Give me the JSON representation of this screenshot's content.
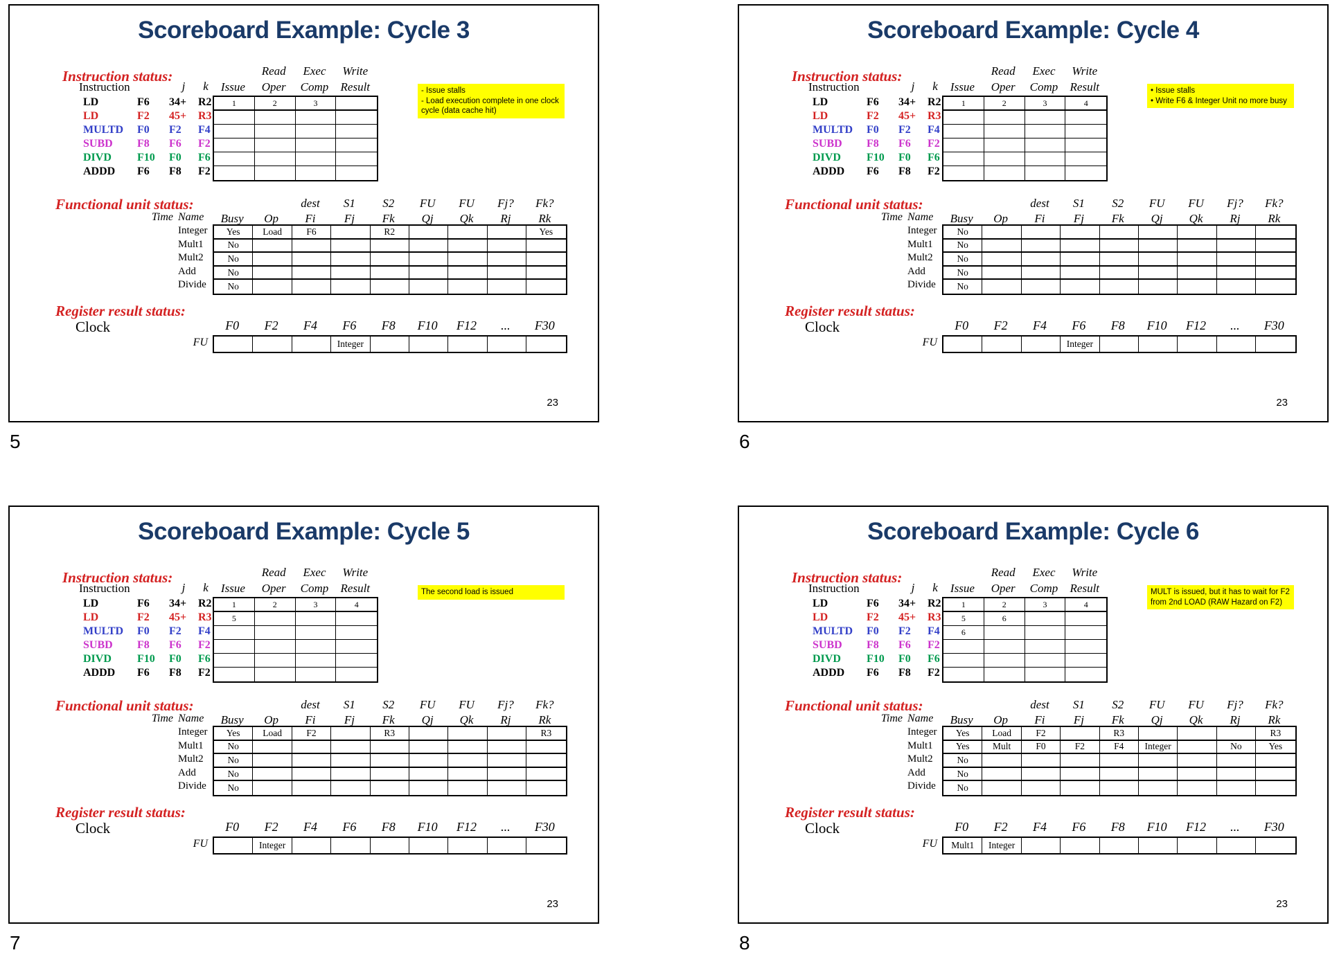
{
  "common": {
    "section_labels": {
      "instruction": "Instruction status:",
      "functional": "Functional unit status:",
      "register": "Register result status:"
    },
    "instruction_table": {
      "row_header": "Instruction",
      "j_header": "j",
      "k_header": "k",
      "col_headers_top": [
        "",
        "Read",
        "Exec",
        "Write"
      ],
      "col_headers_bottom": [
        "Issue",
        "Oper",
        "Comp",
        "Result"
      ],
      "instructions": [
        {
          "op": "LD",
          "operands": [
            "F6",
            "34+",
            "R2"
          ],
          "color": "#000000"
        },
        {
          "op": "LD",
          "operands": [
            "F2",
            "45+",
            "R3"
          ],
          "color": "#d42222"
        },
        {
          "op": "MULTD",
          "operands": [
            "F0",
            "F2",
            "F4"
          ],
          "color": "#3340c8"
        },
        {
          "op": "SUBD",
          "operands": [
            "F8",
            "F6",
            "F2"
          ],
          "color": "#cc33cc"
        },
        {
          "op": "DIVD",
          "operands": [
            "F10",
            "F0",
            "F6"
          ],
          "color": "#009a4e"
        },
        {
          "op": "ADDD",
          "operands": [
            "F6",
            "F8",
            "F2"
          ],
          "color": "#000000"
        }
      ]
    },
    "fu_table": {
      "time_header": "Time",
      "name_header": "Name",
      "col_headers_top": [
        "",
        "",
        "dest",
        "S1",
        "S2",
        "FU",
        "FU",
        "Fj?",
        "Fk?"
      ],
      "col_headers_bottom": [
        "Busy",
        "Op",
        "Fi",
        "Fj",
        "Fk",
        "Qj",
        "Qk",
        "Rj",
        "Rk"
      ],
      "units": [
        "Integer",
        "Mult1",
        "Mult2",
        "Add",
        "Divide"
      ]
    },
    "register_table": {
      "clock_label": "Clock",
      "fu_label": "FU",
      "headers": [
        "F0",
        "F2",
        "F4",
        "F6",
        "F8",
        "F10",
        "F12",
        "...",
        "F30"
      ]
    },
    "colors": {
      "title": "#1a3a68",
      "section_label": "#d42222",
      "note_bg": "#ffff00"
    }
  },
  "slides": [
    {
      "slide_number": "5",
      "title": "Scoreboard Example: Cycle 3",
      "page_number": "23",
      "note_lines": [
        "- Issue stalls",
        "- Load execution complete in one clock cycle (data cache hit)"
      ],
      "instruction_cells": [
        [
          "1",
          "2",
          "3",
          ""
        ],
        [
          "",
          "",
          "",
          ""
        ],
        [
          "",
          "",
          "",
          ""
        ],
        [
          "",
          "",
          "",
          ""
        ],
        [
          "",
          "",
          "",
          ""
        ],
        [
          "",
          "",
          "",
          ""
        ]
      ],
      "fu_cells": [
        [
          "Yes",
          "Load",
          "F6",
          "",
          "R2",
          "",
          "",
          "",
          "Yes"
        ],
        [
          "No",
          "",
          "",
          "",
          "",
          "",
          "",
          "",
          ""
        ],
        [
          "No",
          "",
          "",
          "",
          "",
          "",
          "",
          "",
          ""
        ],
        [
          "No",
          "",
          "",
          "",
          "",
          "",
          "",
          "",
          ""
        ],
        [
          "No",
          "",
          "",
          "",
          "",
          "",
          "",
          "",
          ""
        ]
      ],
      "register_values": [
        "",
        "",
        "",
        "Integer",
        "",
        "",
        "",
        "",
        ""
      ]
    },
    {
      "slide_number": "6",
      "title": "Scoreboard Example: Cycle 4",
      "page_number": "23",
      "note_lines": [
        "• Issue stalls",
        "• Write F6 & Integer Unit no more busy"
      ],
      "instruction_cells": [
        [
          "1",
          "2",
          "3",
          "4"
        ],
        [
          "",
          "",
          "",
          ""
        ],
        [
          "",
          "",
          "",
          ""
        ],
        [
          "",
          "",
          "",
          ""
        ],
        [
          "",
          "",
          "",
          ""
        ],
        [
          "",
          "",
          "",
          ""
        ]
      ],
      "fu_cells": [
        [
          "No",
          "",
          "",
          "",
          "",
          "",
          "",
          "",
          ""
        ],
        [
          "No",
          "",
          "",
          "",
          "",
          "",
          "",
          "",
          ""
        ],
        [
          "No",
          "",
          "",
          "",
          "",
          "",
          "",
          "",
          ""
        ],
        [
          "No",
          "",
          "",
          "",
          "",
          "",
          "",
          "",
          ""
        ],
        [
          "No",
          "",
          "",
          "",
          "",
          "",
          "",
          "",
          ""
        ]
      ],
      "register_values": [
        "",
        "",
        "",
        "Integer",
        "",
        "",
        "",
        "",
        ""
      ]
    },
    {
      "slide_number": "7",
      "title": "Scoreboard Example: Cycle 5",
      "page_number": "23",
      "note_lines": [
        "The second load is issued"
      ],
      "instruction_cells": [
        [
          "1",
          "2",
          "3",
          "4"
        ],
        [
          "5",
          "",
          "",
          ""
        ],
        [
          "",
          "",
          "",
          ""
        ],
        [
          "",
          "",
          "",
          ""
        ],
        [
          "",
          "",
          "",
          ""
        ],
        [
          "",
          "",
          "",
          ""
        ]
      ],
      "fu_cells": [
        [
          "Yes",
          "Load",
          "F2",
          "",
          "R3",
          "",
          "",
          "",
          "R3"
        ],
        [
          "No",
          "",
          "",
          "",
          "",
          "",
          "",
          "",
          ""
        ],
        [
          "No",
          "",
          "",
          "",
          "",
          "",
          "",
          "",
          ""
        ],
        [
          "No",
          "",
          "",
          "",
          "",
          "",
          "",
          "",
          ""
        ],
        [
          "No",
          "",
          "",
          "",
          "",
          "",
          "",
          "",
          ""
        ]
      ],
      "register_values": [
        "",
        "Integer",
        "",
        "",
        "",
        "",
        "",
        "",
        ""
      ]
    },
    {
      "slide_number": "8",
      "title": "Scoreboard Example: Cycle 6",
      "page_number": "23",
      "note_lines": [
        "MULT is issued, but it has to wait for F2 from 2nd LOAD (RAW Hazard on F2)"
      ],
      "instruction_cells": [
        [
          "1",
          "2",
          "3",
          "4"
        ],
        [
          "5",
          "6",
          "",
          ""
        ],
        [
          "6",
          "",
          "",
          ""
        ],
        [
          "",
          "",
          "",
          ""
        ],
        [
          "",
          "",
          "",
          ""
        ],
        [
          "",
          "",
          "",
          ""
        ]
      ],
      "fu_cells": [
        [
          "Yes",
          "Load",
          "F2",
          "",
          "R3",
          "",
          "",
          "",
          "R3"
        ],
        [
          "Yes",
          "Mult",
          "F0",
          "F2",
          "F4",
          "Integer",
          "",
          "No",
          "Yes"
        ],
        [
          "No",
          "",
          "",
          "",
          "",
          "",
          "",
          "",
          ""
        ],
        [
          "No",
          "",
          "",
          "",
          "",
          "",
          "",
          "",
          ""
        ],
        [
          "No",
          "",
          "",
          "",
          "",
          "",
          "",
          "",
          ""
        ]
      ],
      "register_values": [
        "Mult1",
        "Integer",
        "",
        "",
        "",
        "",
        "",
        "",
        ""
      ]
    }
  ]
}
